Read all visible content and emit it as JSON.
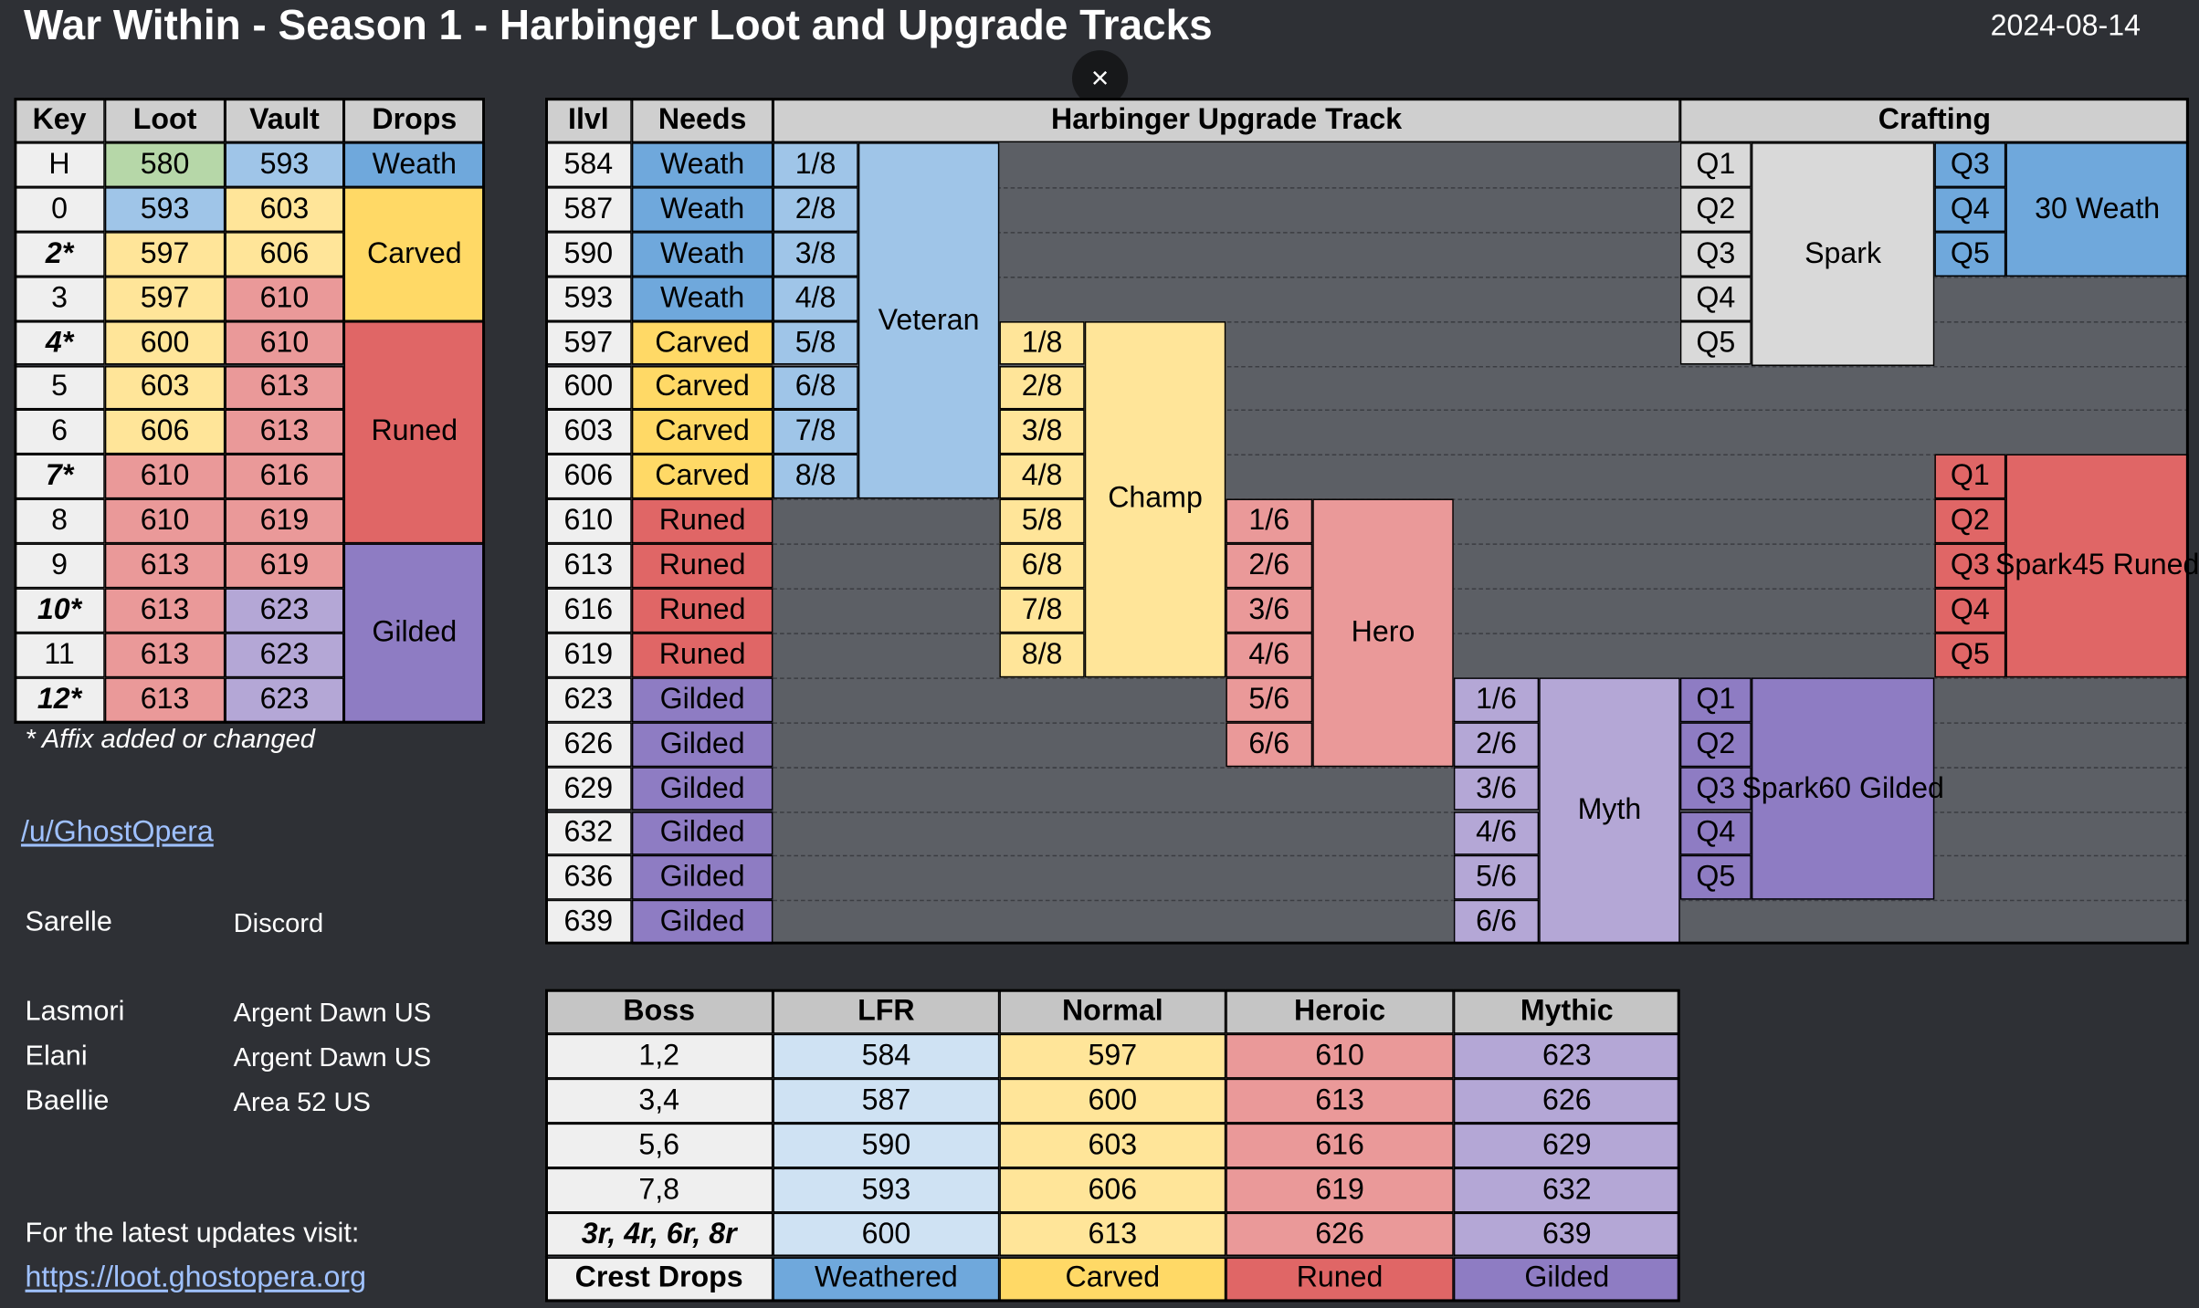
{
  "title": "War Within - Season 1 - Harbinger Loot and Upgrade Tracks",
  "date": "2024-08-14",
  "close_glyph": "×",
  "colors": {
    "weath": "#6fa8dc",
    "weath_light": "#9fc5e8",
    "carved": "#ffd966",
    "carved_light": "#ffe599",
    "runed": "#e06666",
    "runed_light": "#ea9999",
    "gilded": "#8e7cc3",
    "gilded_light": "#b4a7d6",
    "green": "#b6d7a8",
    "white": "#efefef",
    "grey": "#d9d9d9"
  },
  "key_table": {
    "headers": [
      "Key",
      "Loot",
      "Vault",
      "Drops"
    ],
    "rows": [
      {
        "key": "H",
        "loot": "580",
        "vault": "593"
      },
      {
        "key": "0",
        "loot": "593",
        "vault": "603"
      },
      {
        "key": "2*",
        "loot": "597",
        "vault": "606"
      },
      {
        "key": "3",
        "loot": "597",
        "vault": "610"
      },
      {
        "key": "4*",
        "loot": "600",
        "vault": "610"
      },
      {
        "key": "5",
        "loot": "603",
        "vault": "613"
      },
      {
        "key": "6",
        "loot": "606",
        "vault": "613"
      },
      {
        "key": "7*",
        "loot": "610",
        "vault": "616"
      },
      {
        "key": "8",
        "loot": "610",
        "vault": "619"
      },
      {
        "key": "9",
        "loot": "613",
        "vault": "619"
      },
      {
        "key": "10*",
        "loot": "613",
        "vault": "623"
      },
      {
        "key": "11",
        "loot": "613",
        "vault": "623"
      },
      {
        "key": "12*",
        "loot": "613",
        "vault": "623"
      }
    ],
    "drops": [
      "Weath",
      "Carved",
      "Runed",
      "Gilded"
    ],
    "footnote": "* Affix added or changed"
  },
  "credits": {
    "author": "/u/GhostOpera",
    "sarelle": "Sarelle",
    "sarelle_platform": "Discord",
    "people": [
      {
        "name": "Lasmori",
        "realm": "Argent Dawn US"
      },
      {
        "name": "Elani",
        "realm": "Argent Dawn US"
      },
      {
        "name": "Baellie",
        "realm": "Area 52 US"
      }
    ],
    "update_text": "For the latest updates visit:",
    "update_link": "https://loot.ghostopera.org"
  },
  "track": {
    "headers": [
      "Ilvl",
      "Needs",
      "Harbinger Upgrade Track",
      "Crafting"
    ],
    "ilvls": [
      "584",
      "587",
      "590",
      "593",
      "597",
      "600",
      "603",
      "606",
      "610",
      "613",
      "616",
      "619",
      "623",
      "626",
      "629",
      "632",
      "636",
      "639"
    ],
    "needs": [
      "Weath",
      "Weath",
      "Weath",
      "Weath",
      "Carved",
      "Carved",
      "Carved",
      "Carved",
      "Runed",
      "Runed",
      "Runed",
      "Runed",
      "Gilded",
      "Gilded",
      "Gilded",
      "Gilded",
      "Gilded",
      "Gilded"
    ],
    "veteran": {
      "name": "Veteran",
      "steps": [
        "1/8",
        "2/8",
        "3/8",
        "4/8",
        "5/8",
        "6/8",
        "7/8",
        "8/8"
      ]
    },
    "champ": {
      "name": "Champ",
      "steps": [
        "1/8",
        "2/8",
        "3/8",
        "4/8",
        "5/8",
        "6/8",
        "7/8",
        "8/8"
      ]
    },
    "hero": {
      "name": "Hero",
      "steps": [
        "1/6",
        "2/6",
        "3/6",
        "4/6",
        "5/6",
        "6/6"
      ]
    },
    "myth": {
      "name": "Myth",
      "steps": [
        "1/6",
        "2/6",
        "3/6",
        "4/6",
        "5/6",
        "6/6"
      ]
    },
    "craft_spark": {
      "q": [
        "Q1",
        "Q2",
        "Q3",
        "Q4",
        "Q5"
      ],
      "label": "Spark"
    },
    "craft_weath": {
      "q": [
        "Q3",
        "Q4",
        "Q5"
      ],
      "label": "30 Weath"
    },
    "craft_runed": {
      "q": [
        "Q1",
        "Q2",
        "Q3",
        "Q4",
        "Q5"
      ],
      "label_1": "Spark",
      "label_2": "45 Runed"
    },
    "craft_gilded": {
      "q": [
        "Q1",
        "Q2",
        "Q3",
        "Q4",
        "Q5"
      ],
      "label_1": "Spark",
      "label_2": "60 Gilded"
    }
  },
  "boss_table": {
    "headers": [
      "Boss",
      "LFR",
      "Normal",
      "Heroic",
      "Mythic"
    ],
    "rows": [
      {
        "boss": "1,2",
        "lfr": "584",
        "normal": "597",
        "heroic": "610",
        "mythic": "623"
      },
      {
        "boss": "3,4",
        "lfr": "587",
        "normal": "600",
        "heroic": "613",
        "mythic": "626"
      },
      {
        "boss": "5,6",
        "lfr": "590",
        "normal": "603",
        "heroic": "616",
        "mythic": "629"
      },
      {
        "boss": "7,8",
        "lfr": "593",
        "normal": "606",
        "heroic": "619",
        "mythic": "632"
      },
      {
        "boss": "3r, 4r, 6r, 8r",
        "lfr": "600",
        "normal": "613",
        "heroic": "626",
        "mythic": "639"
      }
    ],
    "crest": {
      "label": "Crest Drops",
      "lfr": "Weathered",
      "normal": "Carved",
      "heroic": "Runed",
      "mythic": "Gilded"
    }
  }
}
